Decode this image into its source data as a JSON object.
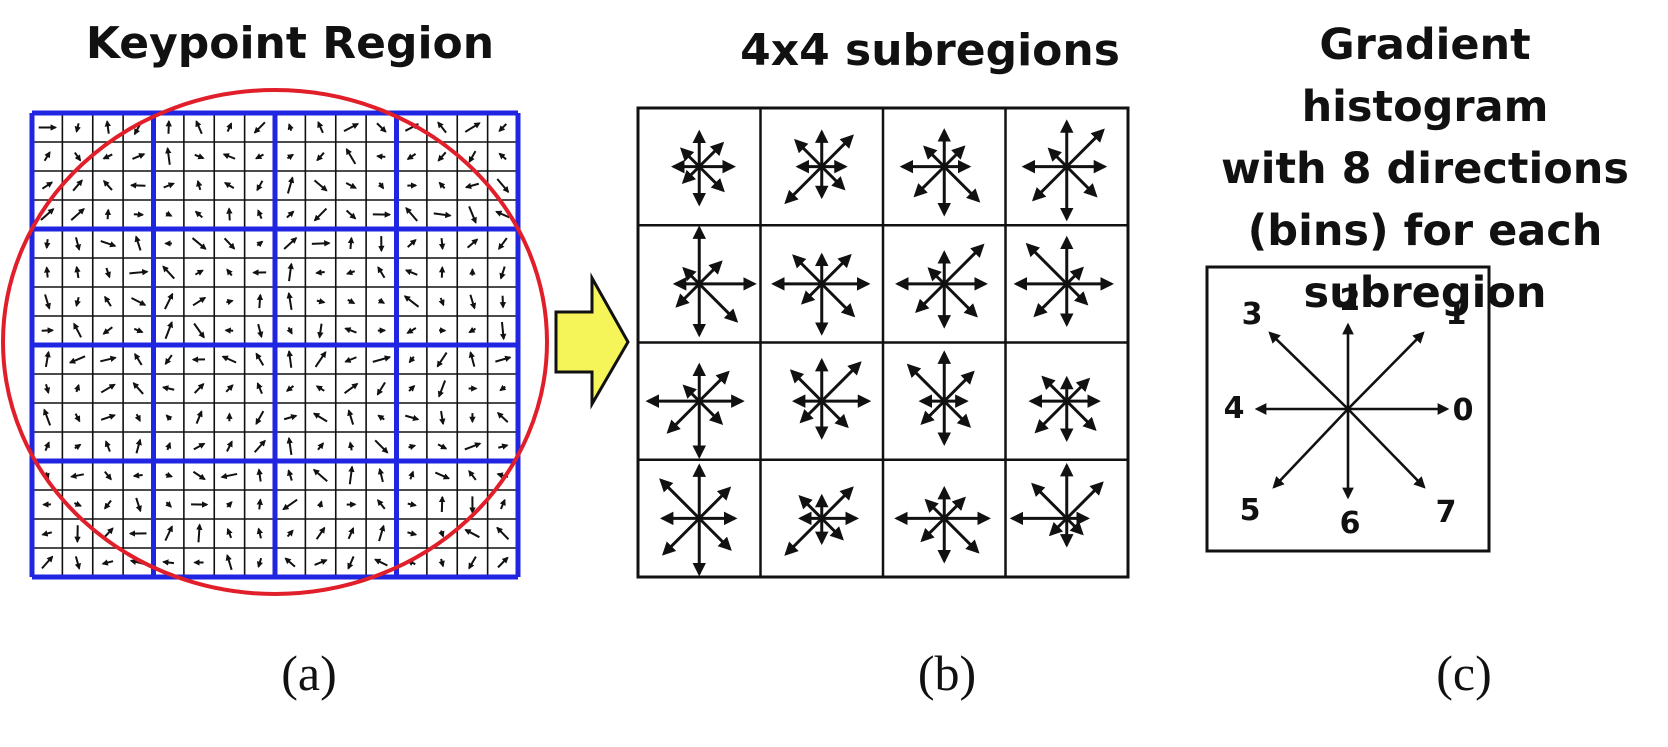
{
  "panel_a": {
    "title": "Keypoint Region",
    "caption": "(a)",
    "grid_label": "4x4 subregions",
    "cells": 16
  },
  "panel_b": {
    "title": "4x4 subregions",
    "caption": "(b)"
  },
  "panel_c": {
    "title_lines": [
      "Gradient histogram",
      "with 8 directions",
      "(bins) for each",
      "subregion"
    ],
    "caption": "(c)",
    "direction_labels": [
      "0",
      "1",
      "2",
      "3",
      "4",
      "5",
      "6",
      "7"
    ]
  },
  "colors": {
    "grid": "#1f25e0",
    "circle": "#e01f2a",
    "arrow": "#f5f55a",
    "line": "#111111"
  }
}
